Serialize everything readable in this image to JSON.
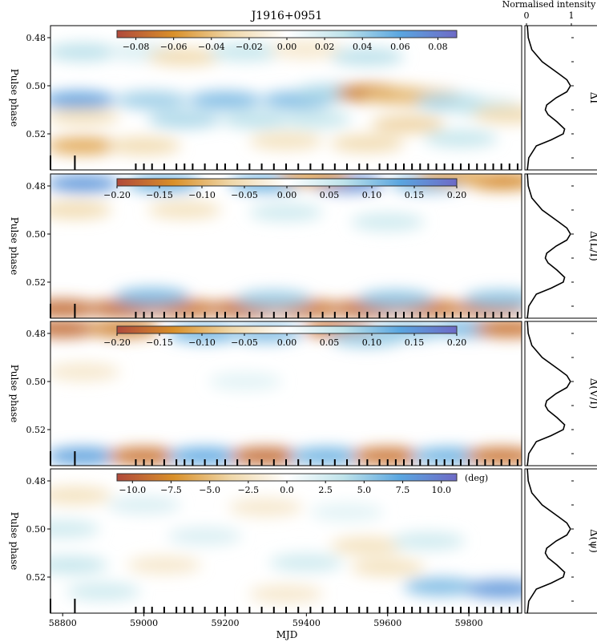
{
  "chart_data": {
    "type": "heatmap",
    "title": "J1916+0951",
    "xlabel": "MJD",
    "ylabel": "Pulse phase",
    "xlim": [
      58770,
      59930
    ],
    "ylim": [
      0.475,
      0.535
    ],
    "x_ticks": [
      "58800",
      "59000",
      "59200",
      "59400",
      "59600",
      "59800"
    ],
    "y_ticks": [
      "0.48",
      "0.50",
      "0.52"
    ],
    "profile_axis": {
      "label": "Normalised intensity",
      "ticks": [
        "0",
        "1"
      ]
    },
    "profile": {
      "phase": [
        0.475,
        0.48,
        0.485,
        0.49,
        0.495,
        0.4975,
        0.5,
        0.5025,
        0.505,
        0.508,
        0.51,
        0.512,
        0.515,
        0.518,
        0.52,
        0.5225,
        0.525,
        0.53,
        0.535
      ],
      "intensity": [
        0.02,
        0.04,
        0.12,
        0.35,
        0.72,
        0.9,
        0.98,
        0.9,
        0.66,
        0.45,
        0.42,
        0.48,
        0.68,
        0.85,
        0.82,
        0.55,
        0.22,
        0.05,
        0.02
      ]
    },
    "observation_mjds": [
      58770,
      58830,
      58980,
      59000,
      59020,
      59050,
      59080,
      59100,
      59120,
      59150,
      59180,
      59200,
      59230,
      59260,
      59290,
      59320,
      59350,
      59380,
      59410,
      59440,
      59470,
      59500,
      59530,
      59550,
      59580,
      59600,
      59620,
      59640,
      59660,
      59680,
      59700,
      59720,
      59740,
      59760,
      59780,
      59800,
      59820,
      59840,
      59860,
      59880,
      59900,
      59920
    ],
    "panels": [
      {
        "name": "delta-i",
        "label": "ΔI",
        "colorbar": {
          "ticks": [
            "−0.08",
            "−0.06",
            "−0.04",
            "−0.02",
            "0.00",
            "0.02",
            "0.04",
            "0.06",
            "0.08"
          ],
          "range": [
            -0.09,
            0.09
          ],
          "unit": ""
        },
        "blobs": [
          {
            "x": 58850,
            "y": 0.486,
            "v": 0.35
          },
          {
            "x": 59000,
            "y": 0.486,
            "v": 0.2
          },
          {
            "x": 59100,
            "y": 0.488,
            "v": -0.3
          },
          {
            "x": 59250,
            "y": 0.486,
            "v": 0.3
          },
          {
            "x": 59400,
            "y": 0.485,
            "v": -0.2
          },
          {
            "x": 59550,
            "y": 0.488,
            "v": 0.35
          },
          {
            "x": 58840,
            "y": 0.506,
            "v": 0.7
          },
          {
            "x": 59020,
            "y": 0.506,
            "v": 0.45
          },
          {
            "x": 59200,
            "y": 0.506,
            "v": 0.55
          },
          {
            "x": 59380,
            "y": 0.506,
            "v": 0.55
          },
          {
            "x": 59460,
            "y": 0.503,
            "v": 0.4
          },
          {
            "x": 59560,
            "y": 0.503,
            "v": -0.75
          },
          {
            "x": 59630,
            "y": 0.504,
            "v": -0.5
          },
          {
            "x": 59700,
            "y": 0.505,
            "v": -0.45
          },
          {
            "x": 59760,
            "y": 0.507,
            "v": 0.4
          },
          {
            "x": 59840,
            "y": 0.509,
            "v": 0.3
          },
          {
            "x": 59900,
            "y": 0.512,
            "v": -0.3
          },
          {
            "x": 58850,
            "y": 0.513,
            "v": -0.25
          },
          {
            "x": 59100,
            "y": 0.514,
            "v": 0.4
          },
          {
            "x": 59280,
            "y": 0.514,
            "v": 0.35
          },
          {
            "x": 59420,
            "y": 0.514,
            "v": 0.3
          },
          {
            "x": 59650,
            "y": 0.516,
            "v": -0.35
          },
          {
            "x": 58850,
            "y": 0.525,
            "v": -0.55
          },
          {
            "x": 59000,
            "y": 0.525,
            "v": -0.3
          },
          {
            "x": 59350,
            "y": 0.523,
            "v": -0.25
          },
          {
            "x": 59550,
            "y": 0.524,
            "v": -0.3
          },
          {
            "x": 59780,
            "y": 0.522,
            "v": 0.3
          }
        ]
      },
      {
        "name": "delta-l",
        "label": "Δ(L/I)",
        "colorbar": {
          "ticks": [
            "−0.20",
            "−0.15",
            "−0.10",
            "−0.05",
            "0.00",
            "0.05",
            "0.10",
            "0.15",
            "0.20"
          ],
          "range": [
            -0.2,
            0.2
          ],
          "unit": ""
        },
        "blobs": [
          {
            "x": 58850,
            "y": 0.479,
            "v": 0.75
          },
          {
            "x": 59050,
            "y": 0.479,
            "v": 0.6
          },
          {
            "x": 59300,
            "y": 0.479,
            "v": 0.6
          },
          {
            "x": 59500,
            "y": 0.479,
            "v": 0.8
          },
          {
            "x": 59700,
            "y": 0.479,
            "v": 0.55
          },
          {
            "x": 59880,
            "y": 0.478,
            "v": -0.7
          },
          {
            "x": 59420,
            "y": 0.476,
            "v": -0.6
          },
          {
            "x": 59760,
            "y": 0.476,
            "v": -0.55
          },
          {
            "x": 58830,
            "y": 0.49,
            "v": -0.3
          },
          {
            "x": 59100,
            "y": 0.49,
            "v": -0.25
          },
          {
            "x": 59350,
            "y": 0.491,
            "v": 0.25
          },
          {
            "x": 59600,
            "y": 0.495,
            "v": 0.25
          },
          {
            "x": 58800,
            "y": 0.531,
            "v": -0.85
          },
          {
            "x": 58950,
            "y": 0.531,
            "v": -0.85
          },
          {
            "x": 59100,
            "y": 0.531,
            "v": -0.8
          },
          {
            "x": 59250,
            "y": 0.531,
            "v": -0.85
          },
          {
            "x": 59400,
            "y": 0.531,
            "v": -0.8
          },
          {
            "x": 59550,
            "y": 0.531,
            "v": -0.85
          },
          {
            "x": 59700,
            "y": 0.531,
            "v": -0.8
          },
          {
            "x": 59850,
            "y": 0.531,
            "v": -0.8
          },
          {
            "x": 59020,
            "y": 0.526,
            "v": 0.55
          },
          {
            "x": 59320,
            "y": 0.527,
            "v": 0.45
          },
          {
            "x": 59620,
            "y": 0.527,
            "v": 0.5
          },
          {
            "x": 59880,
            "y": 0.527,
            "v": 0.5
          }
        ]
      },
      {
        "name": "delta-v",
        "label": "Δ(V/I)",
        "colorbar": {
          "ticks": [
            "−0.20",
            "−0.15",
            "−0.10",
            "−0.05",
            "0.00",
            "0.05",
            "0.10",
            "0.15",
            "0.20"
          ],
          "range": [
            -0.2,
            0.2
          ],
          "unit": ""
        },
        "blobs": [
          {
            "x": 58800,
            "y": 0.478,
            "v": -0.85
          },
          {
            "x": 58950,
            "y": 0.478,
            "v": -0.75
          },
          {
            "x": 59150,
            "y": 0.48,
            "v": 0.6
          },
          {
            "x": 59300,
            "y": 0.48,
            "v": 0.55
          },
          {
            "x": 59480,
            "y": 0.478,
            "v": -0.8
          },
          {
            "x": 59650,
            "y": 0.479,
            "v": 0.5
          },
          {
            "x": 59800,
            "y": 0.478,
            "v": 0.55
          },
          {
            "x": 59900,
            "y": 0.478,
            "v": -0.8
          },
          {
            "x": 59550,
            "y": 0.482,
            "v": 0.45
          },
          {
            "x": 58850,
            "y": 0.496,
            "v": -0.2
          },
          {
            "x": 59250,
            "y": 0.5,
            "v": 0.15
          },
          {
            "x": 58850,
            "y": 0.531,
            "v": 0.7
          },
          {
            "x": 59000,
            "y": 0.531,
            "v": -0.8
          },
          {
            "x": 59150,
            "y": 0.531,
            "v": 0.65
          },
          {
            "x": 59300,
            "y": 0.531,
            "v": -0.85
          },
          {
            "x": 59450,
            "y": 0.531,
            "v": 0.6
          },
          {
            "x": 59600,
            "y": 0.531,
            "v": -0.8
          },
          {
            "x": 59750,
            "y": 0.531,
            "v": 0.6
          },
          {
            "x": 59880,
            "y": 0.531,
            "v": -0.8
          }
        ]
      },
      {
        "name": "delta-psi",
        "label": "Δ(ψ)",
        "colorbar": {
          "ticks": [
            "−10.0",
            "−7.5",
            "−5.0",
            "−2.5",
            "0.0",
            "2.5",
            "5.0",
            "7.5",
            "10.0"
          ],
          "range": [
            -11,
            11
          ],
          "unit": "(deg)"
        },
        "blobs": [
          {
            "x": 58830,
            "y": 0.486,
            "v": -0.25
          },
          {
            "x": 59000,
            "y": 0.49,
            "v": 0.2
          },
          {
            "x": 59300,
            "y": 0.491,
            "v": -0.2
          },
          {
            "x": 59500,
            "y": 0.493,
            "v": 0.15
          },
          {
            "x": 58800,
            "y": 0.5,
            "v": 0.25
          },
          {
            "x": 59150,
            "y": 0.503,
            "v": 0.2
          },
          {
            "x": 59550,
            "y": 0.507,
            "v": -0.25
          },
          {
            "x": 59700,
            "y": 0.505,
            "v": 0.25
          },
          {
            "x": 58820,
            "y": 0.515,
            "v": 0.3
          },
          {
            "x": 59050,
            "y": 0.515,
            "v": -0.2
          },
          {
            "x": 59400,
            "y": 0.514,
            "v": 0.25
          },
          {
            "x": 59600,
            "y": 0.516,
            "v": -0.25
          },
          {
            "x": 59730,
            "y": 0.524,
            "v": 0.55
          },
          {
            "x": 59880,
            "y": 0.525,
            "v": 0.75
          },
          {
            "x": 58900,
            "y": 0.526,
            "v": 0.25
          },
          {
            "x": 59350,
            "y": 0.527,
            "v": -0.2
          }
        ]
      }
    ],
    "colormap_stops": [
      "#b04a3c",
      "#d9902a",
      "#efd7a8",
      "#ffffff",
      "#bfe3ea",
      "#5aa6e0",
      "#6e6ac6"
    ]
  }
}
